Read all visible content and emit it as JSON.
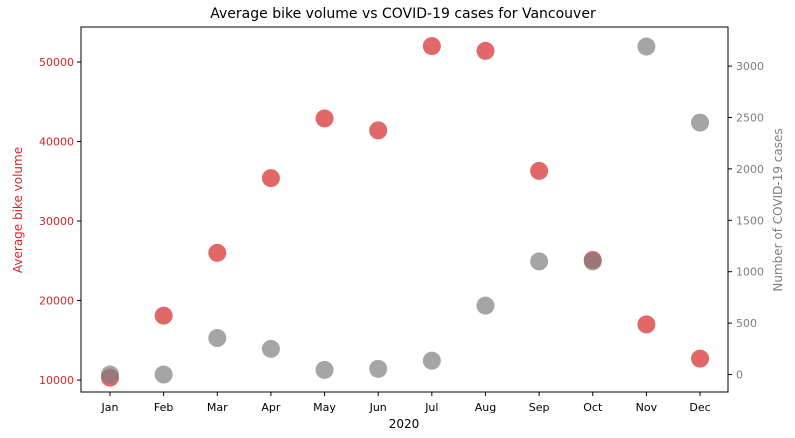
{
  "chart_data": {
    "type": "scatter",
    "title": "Average bike volume vs COVID-19 cases for Vancouver",
    "xlabel": "2020",
    "categories": [
      "Jan",
      "Feb",
      "Mar",
      "Apr",
      "May",
      "Jun",
      "Jul",
      "Aug",
      "Sep",
      "Oct",
      "Nov",
      "Dec"
    ],
    "y_left": {
      "label": "Average bike volume",
      "color": "#d62728",
      "ylim": [
        8500,
        54400
      ],
      "ticks": [
        10000,
        20000,
        30000,
        40000,
        50000
      ]
    },
    "y_right": {
      "label": "Number of COVID-19 cases",
      "color": "#7f7f7f",
      "ylim": [
        -170,
        3380
      ],
      "ticks": [
        0,
        500,
        1000,
        1500,
        2000,
        2500,
        3000
      ]
    },
    "series": [
      {
        "name": "Average bike volume",
        "axis": "left",
        "color": "#d62728",
        "values": [
          10300,
          18100,
          26000,
          35400,
          42900,
          41400,
          52000,
          51400,
          36300,
          25100,
          17000,
          12700
        ]
      },
      {
        "name": "Number of COVID-19 cases",
        "axis": "right",
        "color": "#7f7f7f",
        "values": [
          0,
          0,
          355,
          250,
          45,
          55,
          135,
          670,
          1100,
          1100,
          3190,
          2450
        ]
      }
    ],
    "grid": false,
    "legend": "none"
  }
}
